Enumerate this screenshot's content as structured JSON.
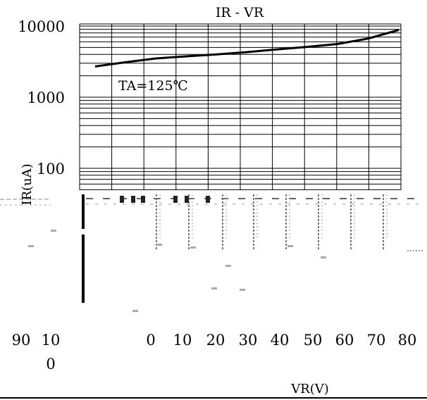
{
  "chart_data": {
    "type": "line",
    "title": "IR - VR",
    "xlabel": "VR(V)",
    "ylabel": "IR(uA)",
    "yscale": "log",
    "ylim": [
      10,
      10000
    ],
    "y_ticks": [
      10000,
      1000,
      100
    ],
    "y_tick_labels": [
      "10000",
      "1000",
      "100"
    ],
    "x_tick_labels": [
      "90",
      "10\n0",
      "0",
      "10",
      "20",
      "30",
      "40",
      "50",
      "60",
      "70",
      "80"
    ],
    "annotation": "TA=125℃",
    "grid": true,
    "series": [
      {
        "x": [
          0,
          10,
          20,
          30,
          40,
          50,
          60,
          70,
          80,
          90,
          100
        ],
        "y": [
          2700,
          3100,
          3500,
          3750,
          4000,
          4300,
          4700,
          5100,
          5600,
          6700,
          8800
        ]
      }
    ]
  }
}
